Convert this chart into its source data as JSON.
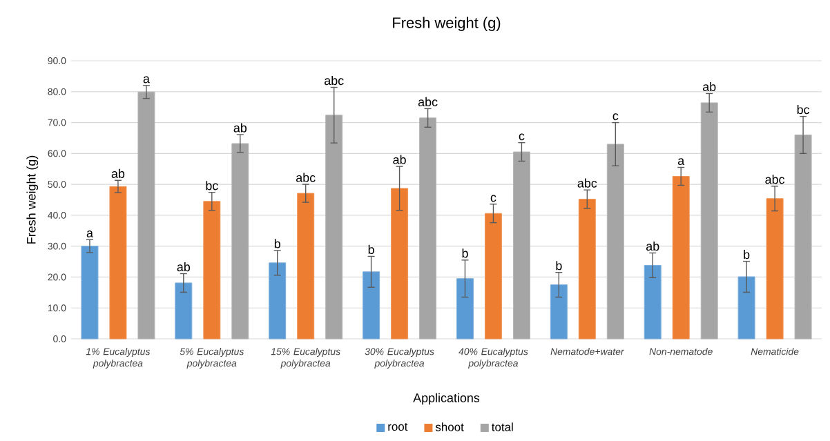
{
  "chart_data": {
    "type": "bar",
    "title": "Fresh weight (g)",
    "xlabel": "Applications",
    "ylabel": "Fresh weight (g)",
    "categories": [
      "1% Eucalyptus polybractea",
      "5% Eucalyptus polybractea",
      "15% Eucalyptus polybractea",
      "30% Eucalyptus polybractea",
      "40% Eucalyptus polybractea",
      "Nematode+water",
      "Non-nematode",
      "Nematicide"
    ],
    "series": [
      {
        "name": "root",
        "color": "#5b9bd5",
        "values": [
          30.0,
          18.1,
          24.6,
          21.7,
          19.5,
          17.5,
          23.8,
          20.1
        ],
        "errors": [
          2.1,
          3.0,
          4.0,
          5.0,
          6.0,
          4.0,
          4.0,
          5.0
        ],
        "value_labels": [
          "a",
          "ab",
          "b",
          "b",
          "b",
          "b",
          "ab",
          "b"
        ]
      },
      {
        "name": "shoot",
        "color": "#ed7d31",
        "values": [
          49.3,
          44.5,
          47.1,
          48.7,
          40.6,
          45.2,
          52.6,
          45.4
        ],
        "errors": [
          2.0,
          2.9,
          2.9,
          7.1,
          3.0,
          3.0,
          2.9,
          4.0
        ],
        "value_labels": [
          "ab",
          "bc",
          "abc",
          "ab",
          "c",
          "abc",
          "a",
          "abc"
        ]
      },
      {
        "name": "total",
        "color": "#a5a5a5",
        "values": [
          79.9,
          63.2,
          72.4,
          71.5,
          60.5,
          63.0,
          76.4,
          66.0
        ],
        "errors": [
          2.1,
          2.9,
          9.0,
          3.0,
          3.0,
          7.0,
          3.0,
          6.0
        ],
        "value_labels": [
          "a",
          "ab",
          "abc",
          "abc",
          "c",
          "c",
          "ab",
          "bc"
        ]
      }
    ],
    "ylim": [
      0,
      90
    ],
    "yticks": [
      {
        "value": 0,
        "label": "0.0"
      },
      {
        "value": 10,
        "label": "10.0"
      },
      {
        "value": 20,
        "label": "20.0"
      },
      {
        "value": 30,
        "label": "30.0"
      },
      {
        "value": 40,
        "label": "40.0"
      },
      {
        "value": 50,
        "label": "50.0"
      },
      {
        "value": 60,
        "label": "60.0"
      },
      {
        "value": 70,
        "label": "70.0"
      },
      {
        "value": 80,
        "label": "80.0"
      },
      {
        "value": 90,
        "label": "90.0"
      }
    ],
    "grid": "y",
    "legend": "bottom"
  }
}
